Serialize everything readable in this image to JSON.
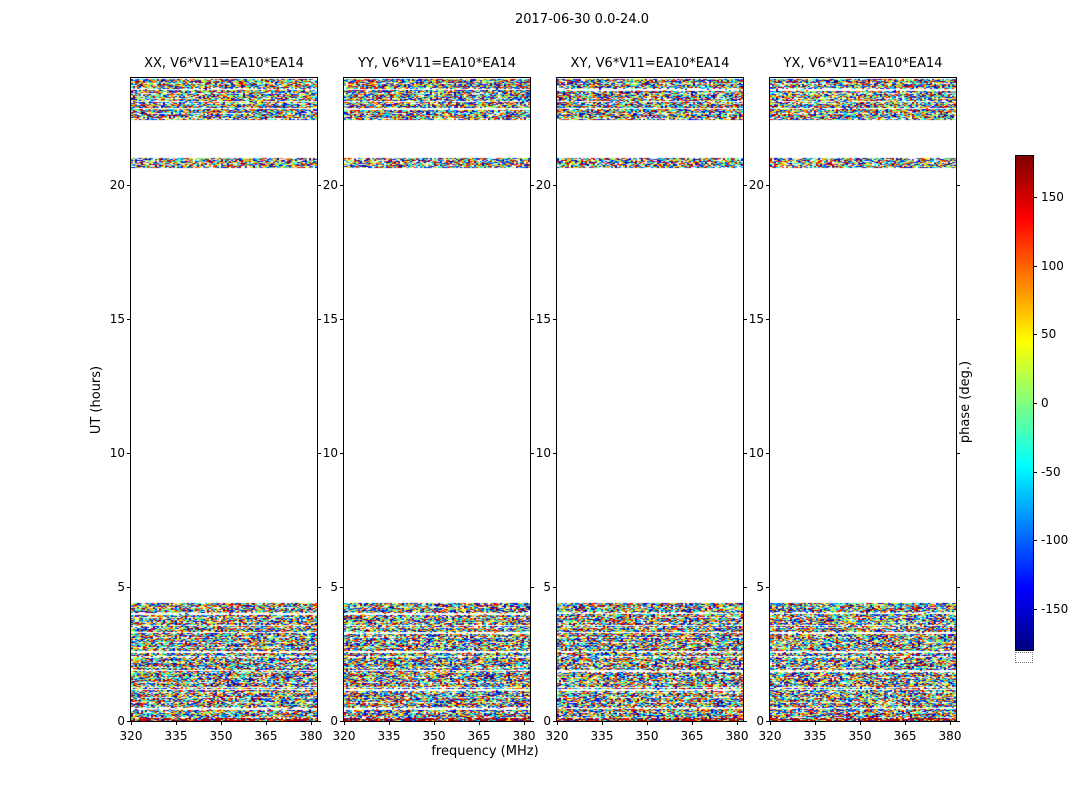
{
  "figure": {
    "title": "2017-06-30 0.0-24.0",
    "xlabel": "frequency (MHz)",
    "ylabel": "UT (hours)",
    "colorbar_label": "phase (deg.)"
  },
  "chart_data": {
    "type": "heatmap",
    "title": "2017-06-30 0.0-24.0",
    "xlabel": "frequency (MHz)",
    "ylabel": "UT (hours)",
    "panels": [
      {
        "label": "XX",
        "title": "XX, V6*V11=EA10*EA14"
      },
      {
        "label": "YY",
        "title": "YY, V6*V11=EA10*EA14"
      },
      {
        "label": "XY",
        "title": "XY, V6*V11=EA10*EA14"
      },
      {
        "label": "YX",
        "title": "YX, V6*V11=EA10*EA14"
      }
    ],
    "x_range_mhz": [
      320,
      382
    ],
    "x_ticks": [
      320,
      335,
      350,
      365,
      380
    ],
    "y_range_hours": [
      0,
      24
    ],
    "y_ticks": [
      0,
      5,
      10,
      15,
      20
    ],
    "colorbar": {
      "label": "phase (deg.)",
      "range_deg": [
        -180,
        180
      ],
      "ticks": [
        150,
        100,
        50,
        0,
        -50,
        -100,
        -150
      ],
      "colormap": "jet"
    },
    "data_bands_ut_hours": [
      {
        "start": 0.0,
        "end": 4.4,
        "texture": "dense random phase noise with fine horizontal striping and a strong red streak near 0 h"
      },
      {
        "start": 20.65,
        "end": 21.0,
        "texture": "thin random phase noise band"
      },
      {
        "start": 22.45,
        "end": 23.95,
        "texture": "dense random phase noise block with horizontal striping up to top of plot"
      }
    ],
    "values": "phase values uniformly scattered between -180 and +180 deg (noise-like); all four polarization panels show the same band structure; remainder of the time-frequency plane is blank"
  }
}
